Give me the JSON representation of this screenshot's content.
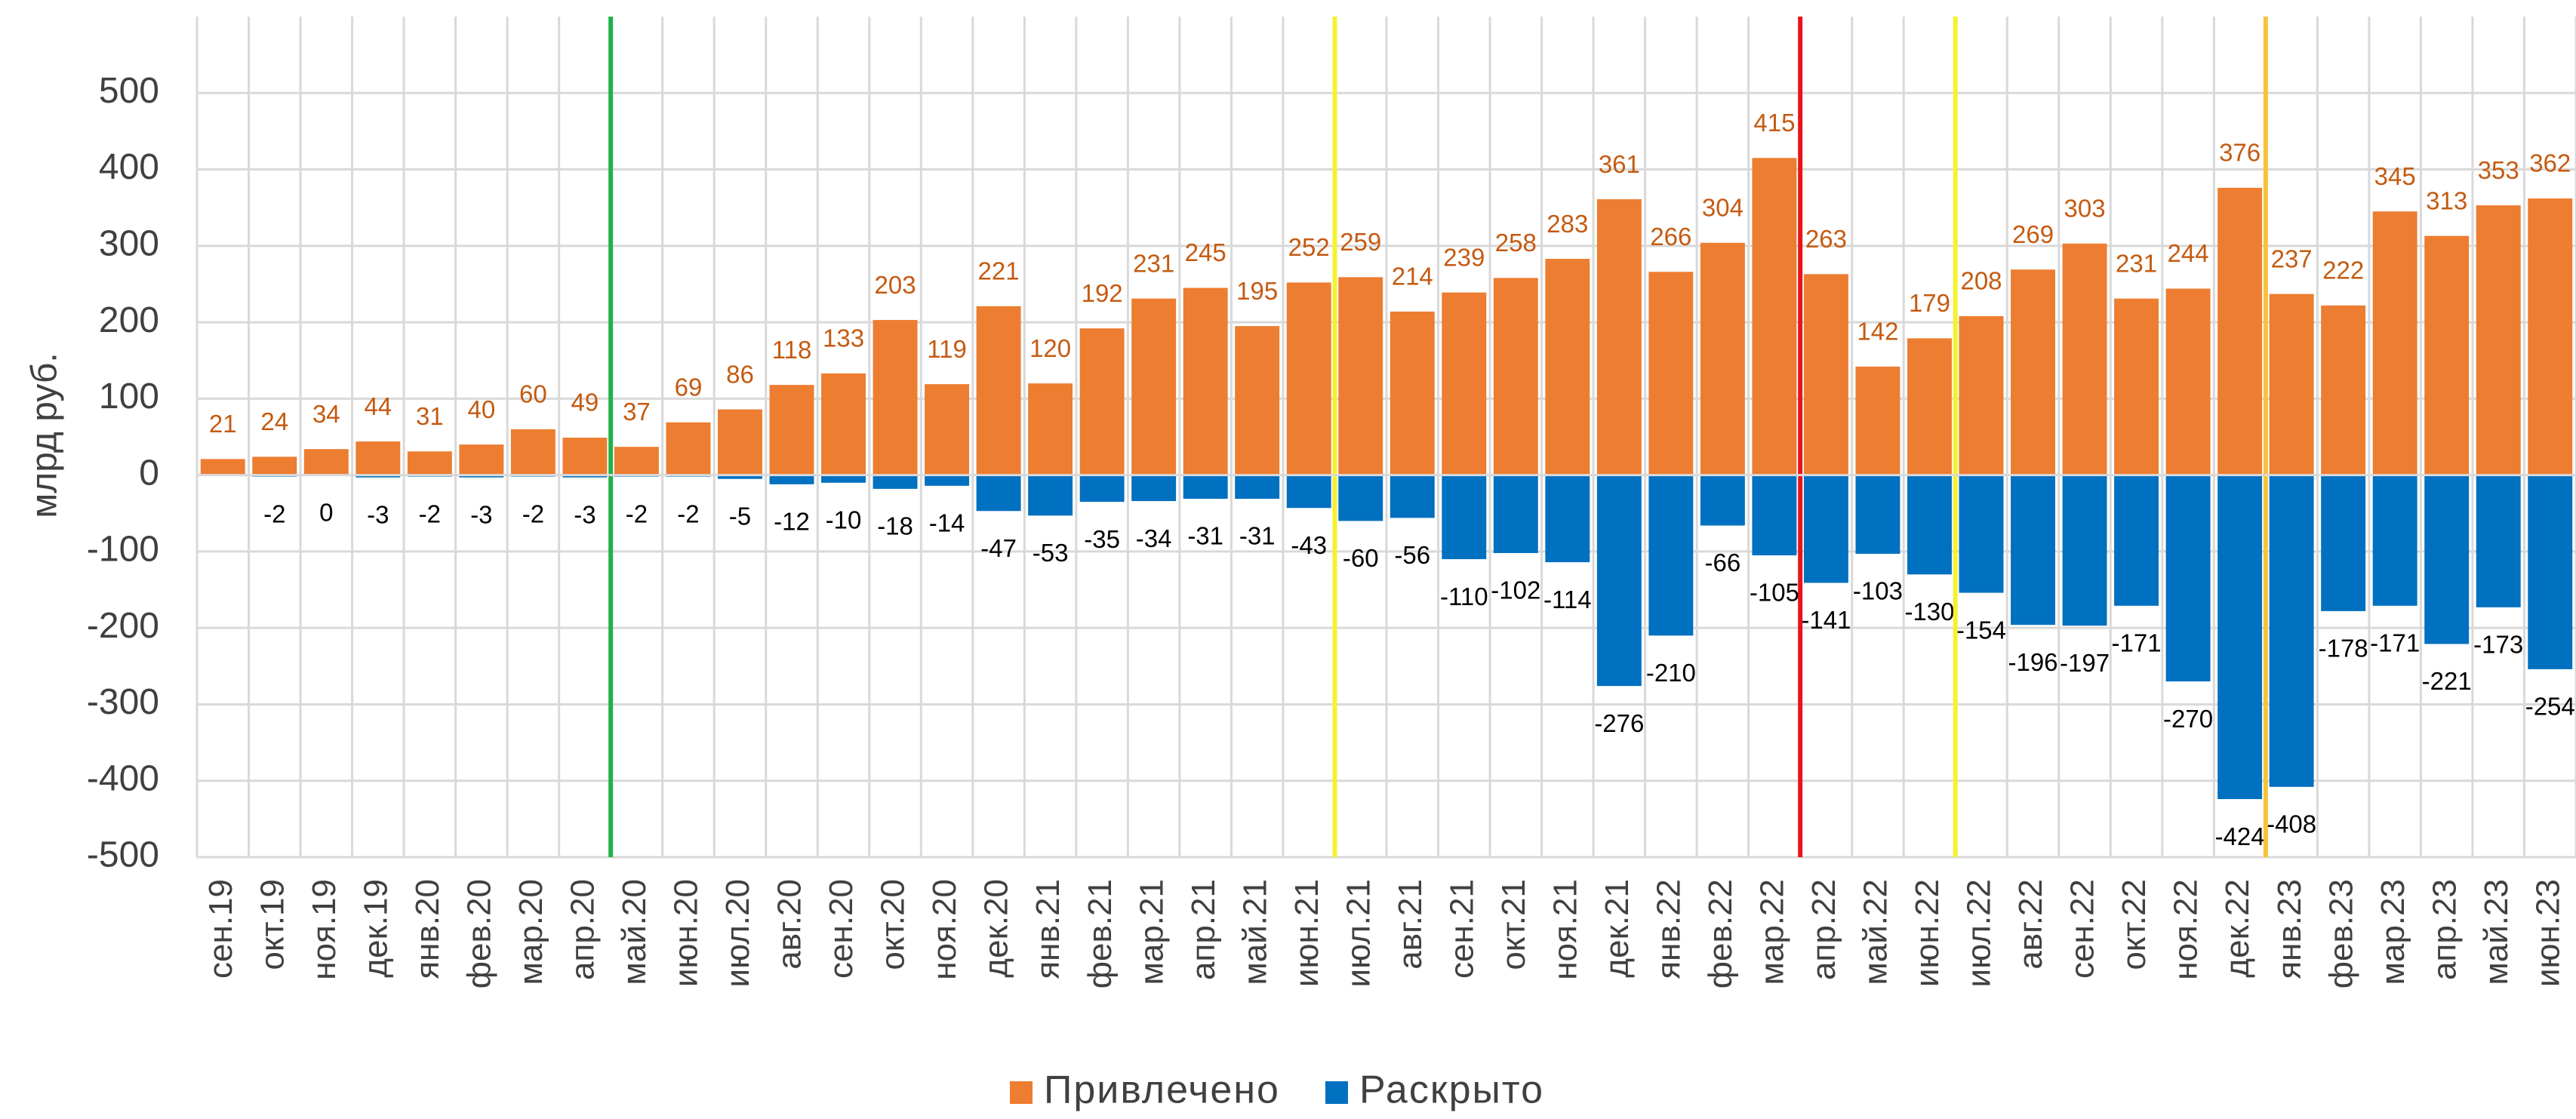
{
  "chart_data": {
    "type": "bar",
    "ylabel": "млрд руб.",
    "categories": [
      "сен.19",
      "окт.19",
      "ноя.19",
      "дек.19",
      "янв.20",
      "фев.20",
      "мар.20",
      "апр.20",
      "май.20",
      "июн.20",
      "июл.20",
      "авг.20",
      "сен.20",
      "окт.20",
      "ноя.20",
      "дек.20",
      "янв.21",
      "фев.21",
      "мар.21",
      "апр.21",
      "май.21",
      "июн.21",
      "июл.21",
      "авг.21",
      "сен.21",
      "окт.21",
      "ноя.21",
      "дек.21",
      "янв.22",
      "фев.22",
      "мар.22",
      "апр.22",
      "май.22",
      "июн.22",
      "июл.22",
      "авг.22",
      "сен.22",
      "окт.22",
      "ноя.22",
      "дек.22",
      "янв.23",
      "фев.23",
      "мар.23",
      "апр.23",
      "май.23",
      "июн.23"
    ],
    "series": [
      {
        "name": "Привлечено",
        "color": "#ed7d31",
        "label_color": "#c55a11",
        "values": [
          21,
          24,
          34,
          44,
          31,
          40,
          60,
          49,
          37,
          69,
          86,
          118,
          133,
          203,
          119,
          221,
          120,
          192,
          231,
          245,
          195,
          252,
          259,
          214,
          239,
          258,
          283,
          361,
          266,
          304,
          415,
          263,
          142,
          179,
          208,
          269,
          303,
          231,
          244,
          376,
          237,
          222,
          345,
          313,
          353,
          362
        ]
      },
      {
        "name": "Раскрыто",
        "color": "#0070c0",
        "label_color": "#000000",
        "values": [
          null,
          -2,
          0,
          -3,
          -2,
          -3,
          -2,
          -3,
          -2,
          -2,
          -5,
          -12,
          -10,
          -18,
          -14,
          -47,
          -53,
          -35,
          -34,
          -31,
          -31,
          -43,
          -60,
          -56,
          -110,
          -102,
          -114,
          -276,
          -210,
          -66,
          -105,
          -141,
          -103,
          -130,
          -154,
          -196,
          -197,
          -171,
          -270,
          -424,
          -408,
          -178,
          -171,
          -221,
          -173,
          -254
        ]
      }
    ],
    "ylim": [
      -500,
      600
    ],
    "yticks": [
      -500,
      -400,
      -300,
      -200,
      -100,
      0,
      100,
      200,
      300,
      400,
      500
    ],
    "grid": true,
    "legend": "bottom",
    "reference_lines": [
      {
        "after": "апр.20",
        "color": "#22b14c"
      },
      {
        "after": "июн.21",
        "color": "#f5f230"
      },
      {
        "after": "мар.22",
        "color": "#e8141c"
      },
      {
        "after": "июн.22",
        "color": "#f5f230"
      },
      {
        "after": "дек.22",
        "color": "#f6c33a"
      }
    ]
  }
}
